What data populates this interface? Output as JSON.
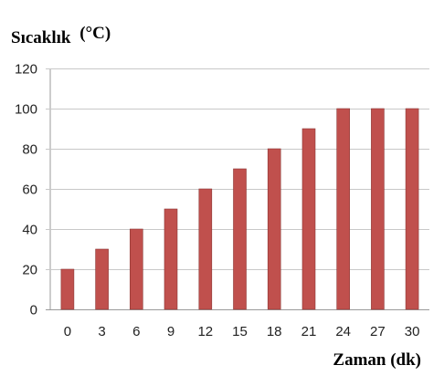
{
  "chart_data": {
    "type": "bar",
    "categories": [
      "0",
      "3",
      "6",
      "9",
      "12",
      "15",
      "18",
      "21",
      "24",
      "27",
      "30"
    ],
    "values": [
      20,
      30,
      40,
      50,
      60,
      70,
      80,
      90,
      100,
      100,
      100
    ],
    "ylabel": "Sıcaklık",
    "ylabel_unit": "(°C)",
    "xlabel": "Zaman (dk)",
    "ylim": [
      0,
      120
    ],
    "yticks": [
      0,
      20,
      40,
      60,
      80,
      100,
      120
    ],
    "grid": true,
    "legend": "none",
    "bar_color": "#c0504d",
    "bar_edge_color": "#8c3836",
    "grid_color": "#c8c8c8"
  }
}
